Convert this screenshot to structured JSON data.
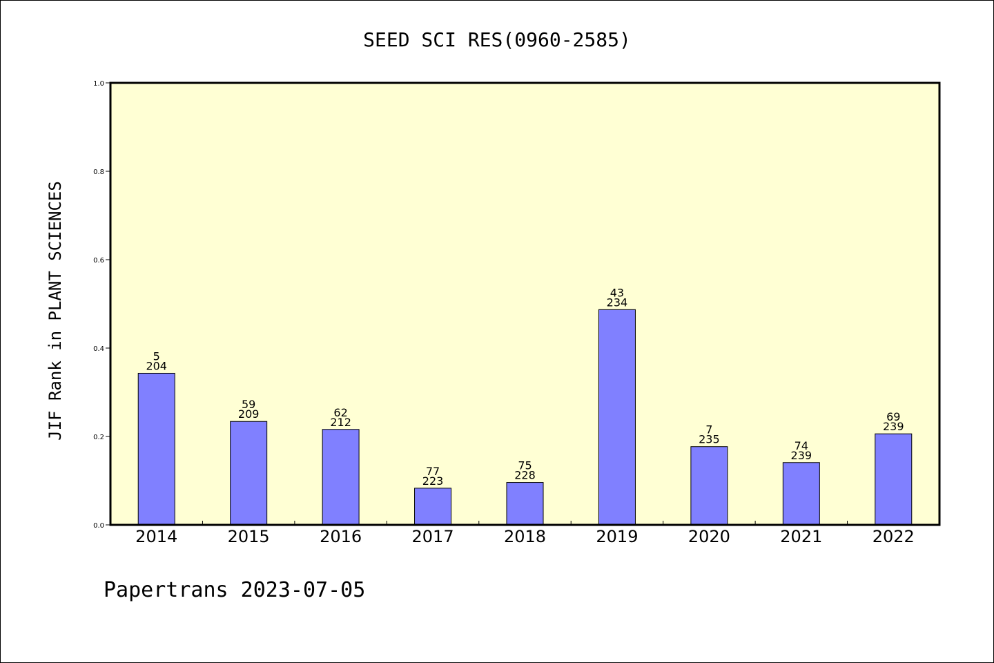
{
  "chart_data": {
    "type": "bar",
    "title": "SEED SCI RES(0960-2585)",
    "ylabel": "JIF Rank in PLANT SCIENCES",
    "xlabel": "",
    "ylim": [
      0,
      1.0
    ],
    "yticks": [
      "0.0",
      "0.2",
      "0.4",
      "0.6",
      "0.8",
      "1.0"
    ],
    "categories": [
      "2014",
      "2015",
      "2016",
      "2017",
      "2018",
      "2019",
      "2020",
      "2021",
      "2022"
    ],
    "values": [
      0.343,
      0.234,
      0.216,
      0.083,
      0.096,
      0.487,
      0.177,
      0.141,
      0.206
    ],
    "ranks": [
      "5",
      "59",
      "62",
      "77",
      "75",
      "43",
      "7",
      "74",
      "69"
    ],
    "totals": [
      "204",
      "209",
      "212",
      "223",
      "228",
      "234",
      "235",
      "239",
      "239"
    ],
    "grid": false,
    "plot_background": "#ffffd4",
    "bar_color": "#8080ff",
    "footer": "Papertrans 2023-07-05"
  }
}
